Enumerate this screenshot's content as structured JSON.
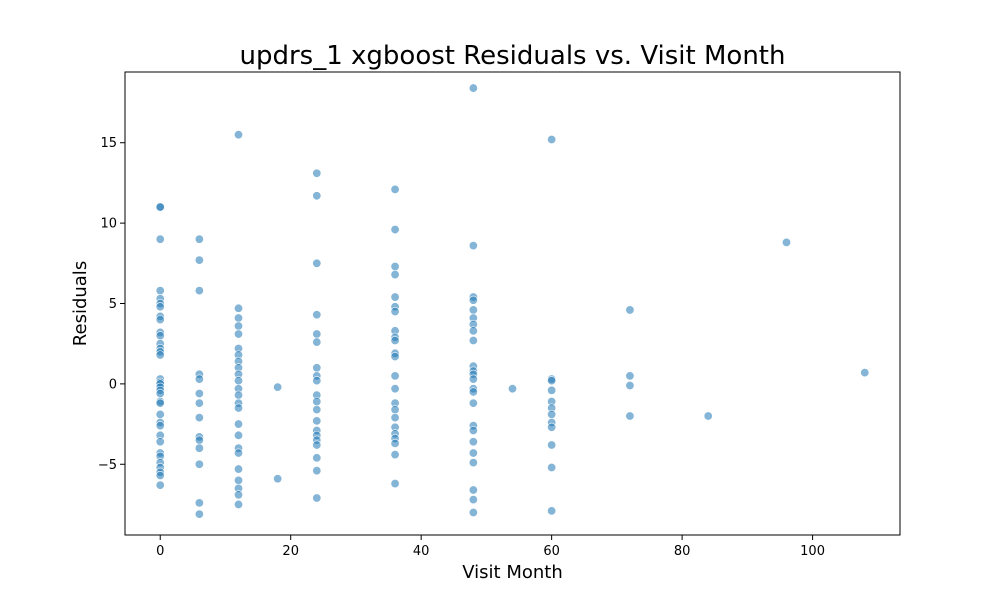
{
  "chart_data": {
    "type": "scatter",
    "title": "updrs_1 xgboost Residuals vs. Visit Month",
    "xlabel": "Visit Month",
    "ylabel": "Residuals",
    "xlim": [
      -5.4,
      113.4
    ],
    "ylim": [
      -9.4,
      19.4
    ],
    "xticks": [
      0,
      20,
      40,
      60,
      80,
      100
    ],
    "yticks": [
      -5,
      0,
      5,
      10,
      15
    ],
    "grid": false,
    "marker_color": "#1f77b4",
    "marker_alpha": 0.55,
    "points": [
      [
        0,
        11.0
      ],
      [
        0,
        11.0
      ],
      [
        0,
        9.0
      ],
      [
        0,
        5.8
      ],
      [
        0,
        5.3
      ],
      [
        0,
        5.0
      ],
      [
        0,
        4.8
      ],
      [
        0,
        4.2
      ],
      [
        0,
        4.0
      ],
      [
        0,
        3.2
      ],
      [
        0,
        3.0
      ],
      [
        0,
        2.5
      ],
      [
        0,
        2.2
      ],
      [
        0,
        2.0
      ],
      [
        0,
        1.8
      ],
      [
        0,
        0.3
      ],
      [
        0,
        0.1
      ],
      [
        0,
        0.0
      ],
      [
        0,
        -0.2
      ],
      [
        0,
        -0.4
      ],
      [
        0,
        -0.6
      ],
      [
        0,
        -1.1
      ],
      [
        0,
        -1.2
      ],
      [
        0,
        -1.9
      ],
      [
        0,
        -2.4
      ],
      [
        0,
        -2.6
      ],
      [
        0,
        -3.2
      ],
      [
        0,
        -3.6
      ],
      [
        0,
        -4.3
      ],
      [
        0,
        -4.5
      ],
      [
        0,
        -4.9
      ],
      [
        0,
        -5.2
      ],
      [
        0,
        -5.5
      ],
      [
        0,
        -5.7
      ],
      [
        0,
        -6.3
      ],
      [
        6,
        9.0
      ],
      [
        6,
        7.7
      ],
      [
        6,
        5.8
      ],
      [
        6,
        0.6
      ],
      [
        6,
        0.3
      ],
      [
        6,
        -0.6
      ],
      [
        6,
        -1.2
      ],
      [
        6,
        -2.1
      ],
      [
        6,
        -3.3
      ],
      [
        6,
        -3.5
      ],
      [
        6,
        -4.0
      ],
      [
        6,
        -5.0
      ],
      [
        6,
        -7.4
      ],
      [
        6,
        -8.1
      ],
      [
        12,
        15.5
      ],
      [
        12,
        4.7
      ],
      [
        12,
        4.1
      ],
      [
        12,
        3.6
      ],
      [
        12,
        3.1
      ],
      [
        12,
        2.2
      ],
      [
        12,
        1.8
      ],
      [
        12,
        1.4
      ],
      [
        12,
        1.0
      ],
      [
        12,
        0.6
      ],
      [
        12,
        0.2
      ],
      [
        12,
        -0.3
      ],
      [
        12,
        -0.7
      ],
      [
        12,
        -1.2
      ],
      [
        12,
        -1.5
      ],
      [
        12,
        -2.5
      ],
      [
        12,
        -3.2
      ],
      [
        12,
        -4.0
      ],
      [
        12,
        -4.3
      ],
      [
        12,
        -5.3
      ],
      [
        12,
        -6.0
      ],
      [
        12,
        -6.5
      ],
      [
        12,
        -6.9
      ],
      [
        12,
        -7.5
      ],
      [
        18,
        -0.2
      ],
      [
        18,
        -5.9
      ],
      [
        24,
        13.1
      ],
      [
        24,
        11.7
      ],
      [
        24,
        7.5
      ],
      [
        24,
        4.3
      ],
      [
        24,
        3.1
      ],
      [
        24,
        2.6
      ],
      [
        24,
        1.0
      ],
      [
        24,
        0.5
      ],
      [
        24,
        0.2
      ],
      [
        24,
        -0.7
      ],
      [
        24,
        -1.1
      ],
      [
        24,
        -1.6
      ],
      [
        24,
        -2.3
      ],
      [
        24,
        -2.9
      ],
      [
        24,
        -3.2
      ],
      [
        24,
        -3.5
      ],
      [
        24,
        -3.8
      ],
      [
        24,
        -4.6
      ],
      [
        24,
        -5.4
      ],
      [
        24,
        -7.1
      ],
      [
        36,
        12.1
      ],
      [
        36,
        9.6
      ],
      [
        36,
        7.3
      ],
      [
        36,
        6.8
      ],
      [
        36,
        5.4
      ],
      [
        36,
        4.8
      ],
      [
        36,
        4.5
      ],
      [
        36,
        3.3
      ],
      [
        36,
        2.9
      ],
      [
        36,
        2.7
      ],
      [
        36,
        1.9
      ],
      [
        36,
        1.7
      ],
      [
        36,
        0.5
      ],
      [
        36,
        -0.3
      ],
      [
        36,
        -1.2
      ],
      [
        36,
        -1.6
      ],
      [
        36,
        -2.1
      ],
      [
        36,
        -2.7
      ],
      [
        36,
        -3.1
      ],
      [
        36,
        -3.4
      ],
      [
        36,
        -3.7
      ],
      [
        36,
        -4.4
      ],
      [
        36,
        -6.2
      ],
      [
        48,
        18.4
      ],
      [
        48,
        8.6
      ],
      [
        48,
        5.4
      ],
      [
        48,
        5.2
      ],
      [
        48,
        4.6
      ],
      [
        48,
        4.1
      ],
      [
        48,
        3.7
      ],
      [
        48,
        3.3
      ],
      [
        48,
        2.7
      ],
      [
        48,
        1.1
      ],
      [
        48,
        0.8
      ],
      [
        48,
        0.6
      ],
      [
        48,
        0.3
      ],
      [
        48,
        -0.3
      ],
      [
        48,
        -0.5
      ],
      [
        48,
        -1.2
      ],
      [
        48,
        -2.6
      ],
      [
        48,
        -2.9
      ],
      [
        48,
        -3.6
      ],
      [
        48,
        -4.3
      ],
      [
        48,
        -4.9
      ],
      [
        48,
        -6.6
      ],
      [
        48,
        -7.2
      ],
      [
        48,
        -8.0
      ],
      [
        54,
        -0.3
      ],
      [
        60,
        15.2
      ],
      [
        60,
        0.3
      ],
      [
        60,
        0.2
      ],
      [
        60,
        -0.4
      ],
      [
        60,
        -1.1
      ],
      [
        60,
        -1.5
      ],
      [
        60,
        -1.9
      ],
      [
        60,
        -2.4
      ],
      [
        60,
        -2.7
      ],
      [
        60,
        -3.8
      ],
      [
        60,
        -5.2
      ],
      [
        60,
        -7.9
      ],
      [
        72,
        4.6
      ],
      [
        72,
        0.5
      ],
      [
        72,
        -0.1
      ],
      [
        72,
        -2.0
      ],
      [
        84,
        -2.0
      ],
      [
        96,
        8.8
      ],
      [
        108,
        0.7
      ]
    ]
  }
}
